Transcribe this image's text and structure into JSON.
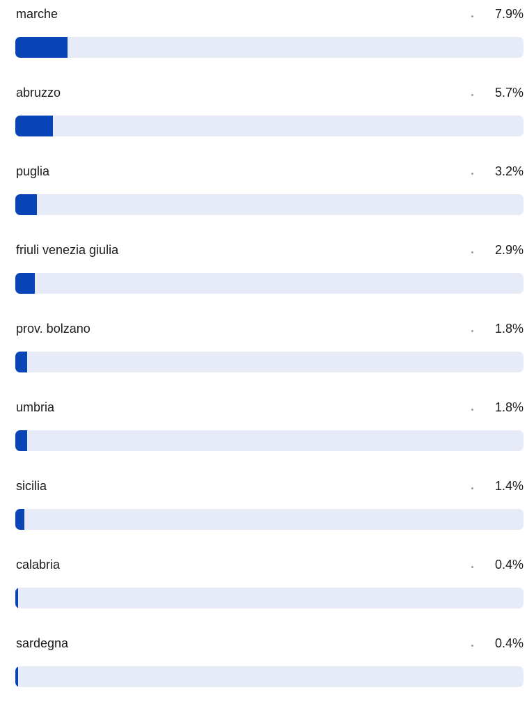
{
  "colors": {
    "bar_fill": "#0a45b8",
    "bar_track": "#e6ebf7",
    "text": "#1a1a1a"
  },
  "regions": [
    {
      "name": "marche",
      "value_label": "7.9%",
      "value": 7.9
    },
    {
      "name": "abruzzo",
      "value_label": "5.7%",
      "value": 5.7
    },
    {
      "name": "puglia",
      "value_label": "3.2%",
      "value": 3.2
    },
    {
      "name": "friuli venezia giulia",
      "value_label": "2.9%",
      "value": 2.9
    },
    {
      "name": "prov. bolzano",
      "value_label": "1.8%",
      "value": 1.8
    },
    {
      "name": "umbria",
      "value_label": "1.8%",
      "value": 1.8
    },
    {
      "name": "sicilia",
      "value_label": "1.4%",
      "value": 1.4
    },
    {
      "name": "calabria",
      "value_label": "0.4%",
      "value": 0.4
    },
    {
      "name": "sardegna",
      "value_label": "0.4%",
      "value": 0.4
    }
  ]
}
